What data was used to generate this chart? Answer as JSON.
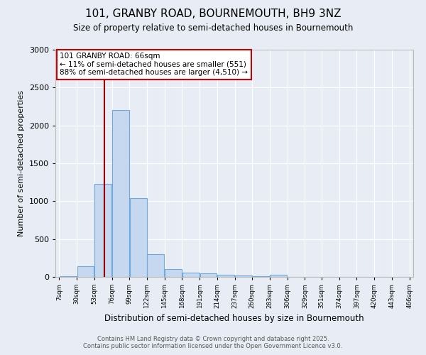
{
  "title_line1": "101, GRANBY ROAD, BOURNEMOUTH, BH9 3NZ",
  "title_line2": "Size of property relative to semi-detached houses in Bournemouth",
  "xlabel": "Distribution of semi-detached houses by size in Bournemouth",
  "ylabel": "Number of semi-detached properties",
  "bin_edges": [
    7,
    30,
    53,
    76,
    99,
    122,
    145,
    168,
    191,
    214,
    237,
    260,
    283,
    306,
    329,
    351,
    374,
    397,
    420,
    443,
    466
  ],
  "bin_counts": [
    10,
    140,
    1230,
    2200,
    1040,
    300,
    105,
    55,
    50,
    30,
    20,
    10,
    30,
    0,
    0,
    0,
    0,
    0,
    0,
    0
  ],
  "property_size": 66,
  "property_label": "101 GRANBY ROAD: 66sqm",
  "annotation_line1": "← 11% of semi-detached houses are smaller (551)",
  "annotation_line2": "88% of semi-detached houses are larger (4,510) →",
  "bar_color": "#c5d8f0",
  "bar_edge_color": "#6fa8dc",
  "vline_color": "#990000",
  "annotation_box_facecolor": "#ffffff",
  "annotation_box_edgecolor": "#cc0000",
  "background_color": "#e8edf5",
  "grid_color": "#ffffff",
  "ylim": [
    0,
    3000
  ],
  "xlim": [
    7,
    466
  ],
  "footer_line1": "Contains HM Land Registry data © Crown copyright and database right 2025.",
  "footer_line2": "Contains public sector information licensed under the Open Government Licence v3.0.",
  "tick_labels": [
    "7sqm",
    "30sqm",
    "53sqm",
    "76sqm",
    "99sqm",
    "122sqm",
    "145sqm",
    "168sqm",
    "191sqm",
    "214sqm",
    "237sqm",
    "260sqm",
    "283sqm",
    "306sqm",
    "329sqm",
    "351sqm",
    "374sqm",
    "397sqm",
    "420sqm",
    "443sqm",
    "466sqm"
  ]
}
